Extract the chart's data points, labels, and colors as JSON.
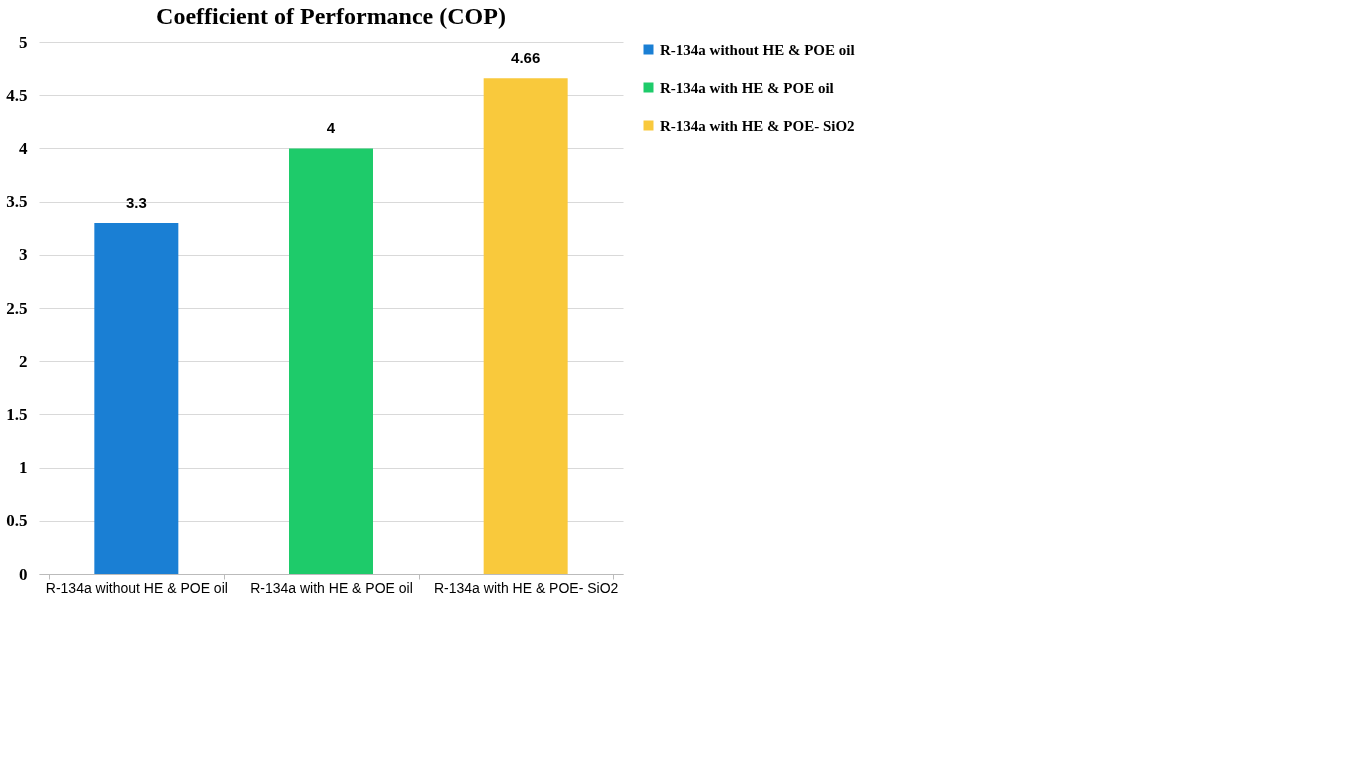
{
  "chart_data": {
    "type": "bar",
    "title": "Coefficient of Performance (COP)",
    "categories": [
      "R-134a without HE & POE oil",
      "R-134a with HE & POE oil",
      "R-134a with HE & POE- SiO2"
    ],
    "series": [
      {
        "name": "R-134a without HE & POE oil",
        "color": "#1a7fd4",
        "values": [
          3.3,
          null,
          null
        ]
      },
      {
        "name": "R-134a with HE & POE oil",
        "color": "#1ecb6a",
        "values": [
          null,
          4,
          null
        ]
      },
      {
        "name": "R-134a with HE & POE- SiO2",
        "color": "#f9c93c",
        "values": [
          null,
          null,
          4.66
        ]
      }
    ],
    "ylim": [
      0,
      5
    ],
    "yticks": [
      0,
      0.5,
      1,
      1.5,
      2,
      2.5,
      3,
      3.5,
      4,
      4.5,
      5
    ],
    "grid": "y",
    "data_labels": true,
    "legend": "right"
  }
}
